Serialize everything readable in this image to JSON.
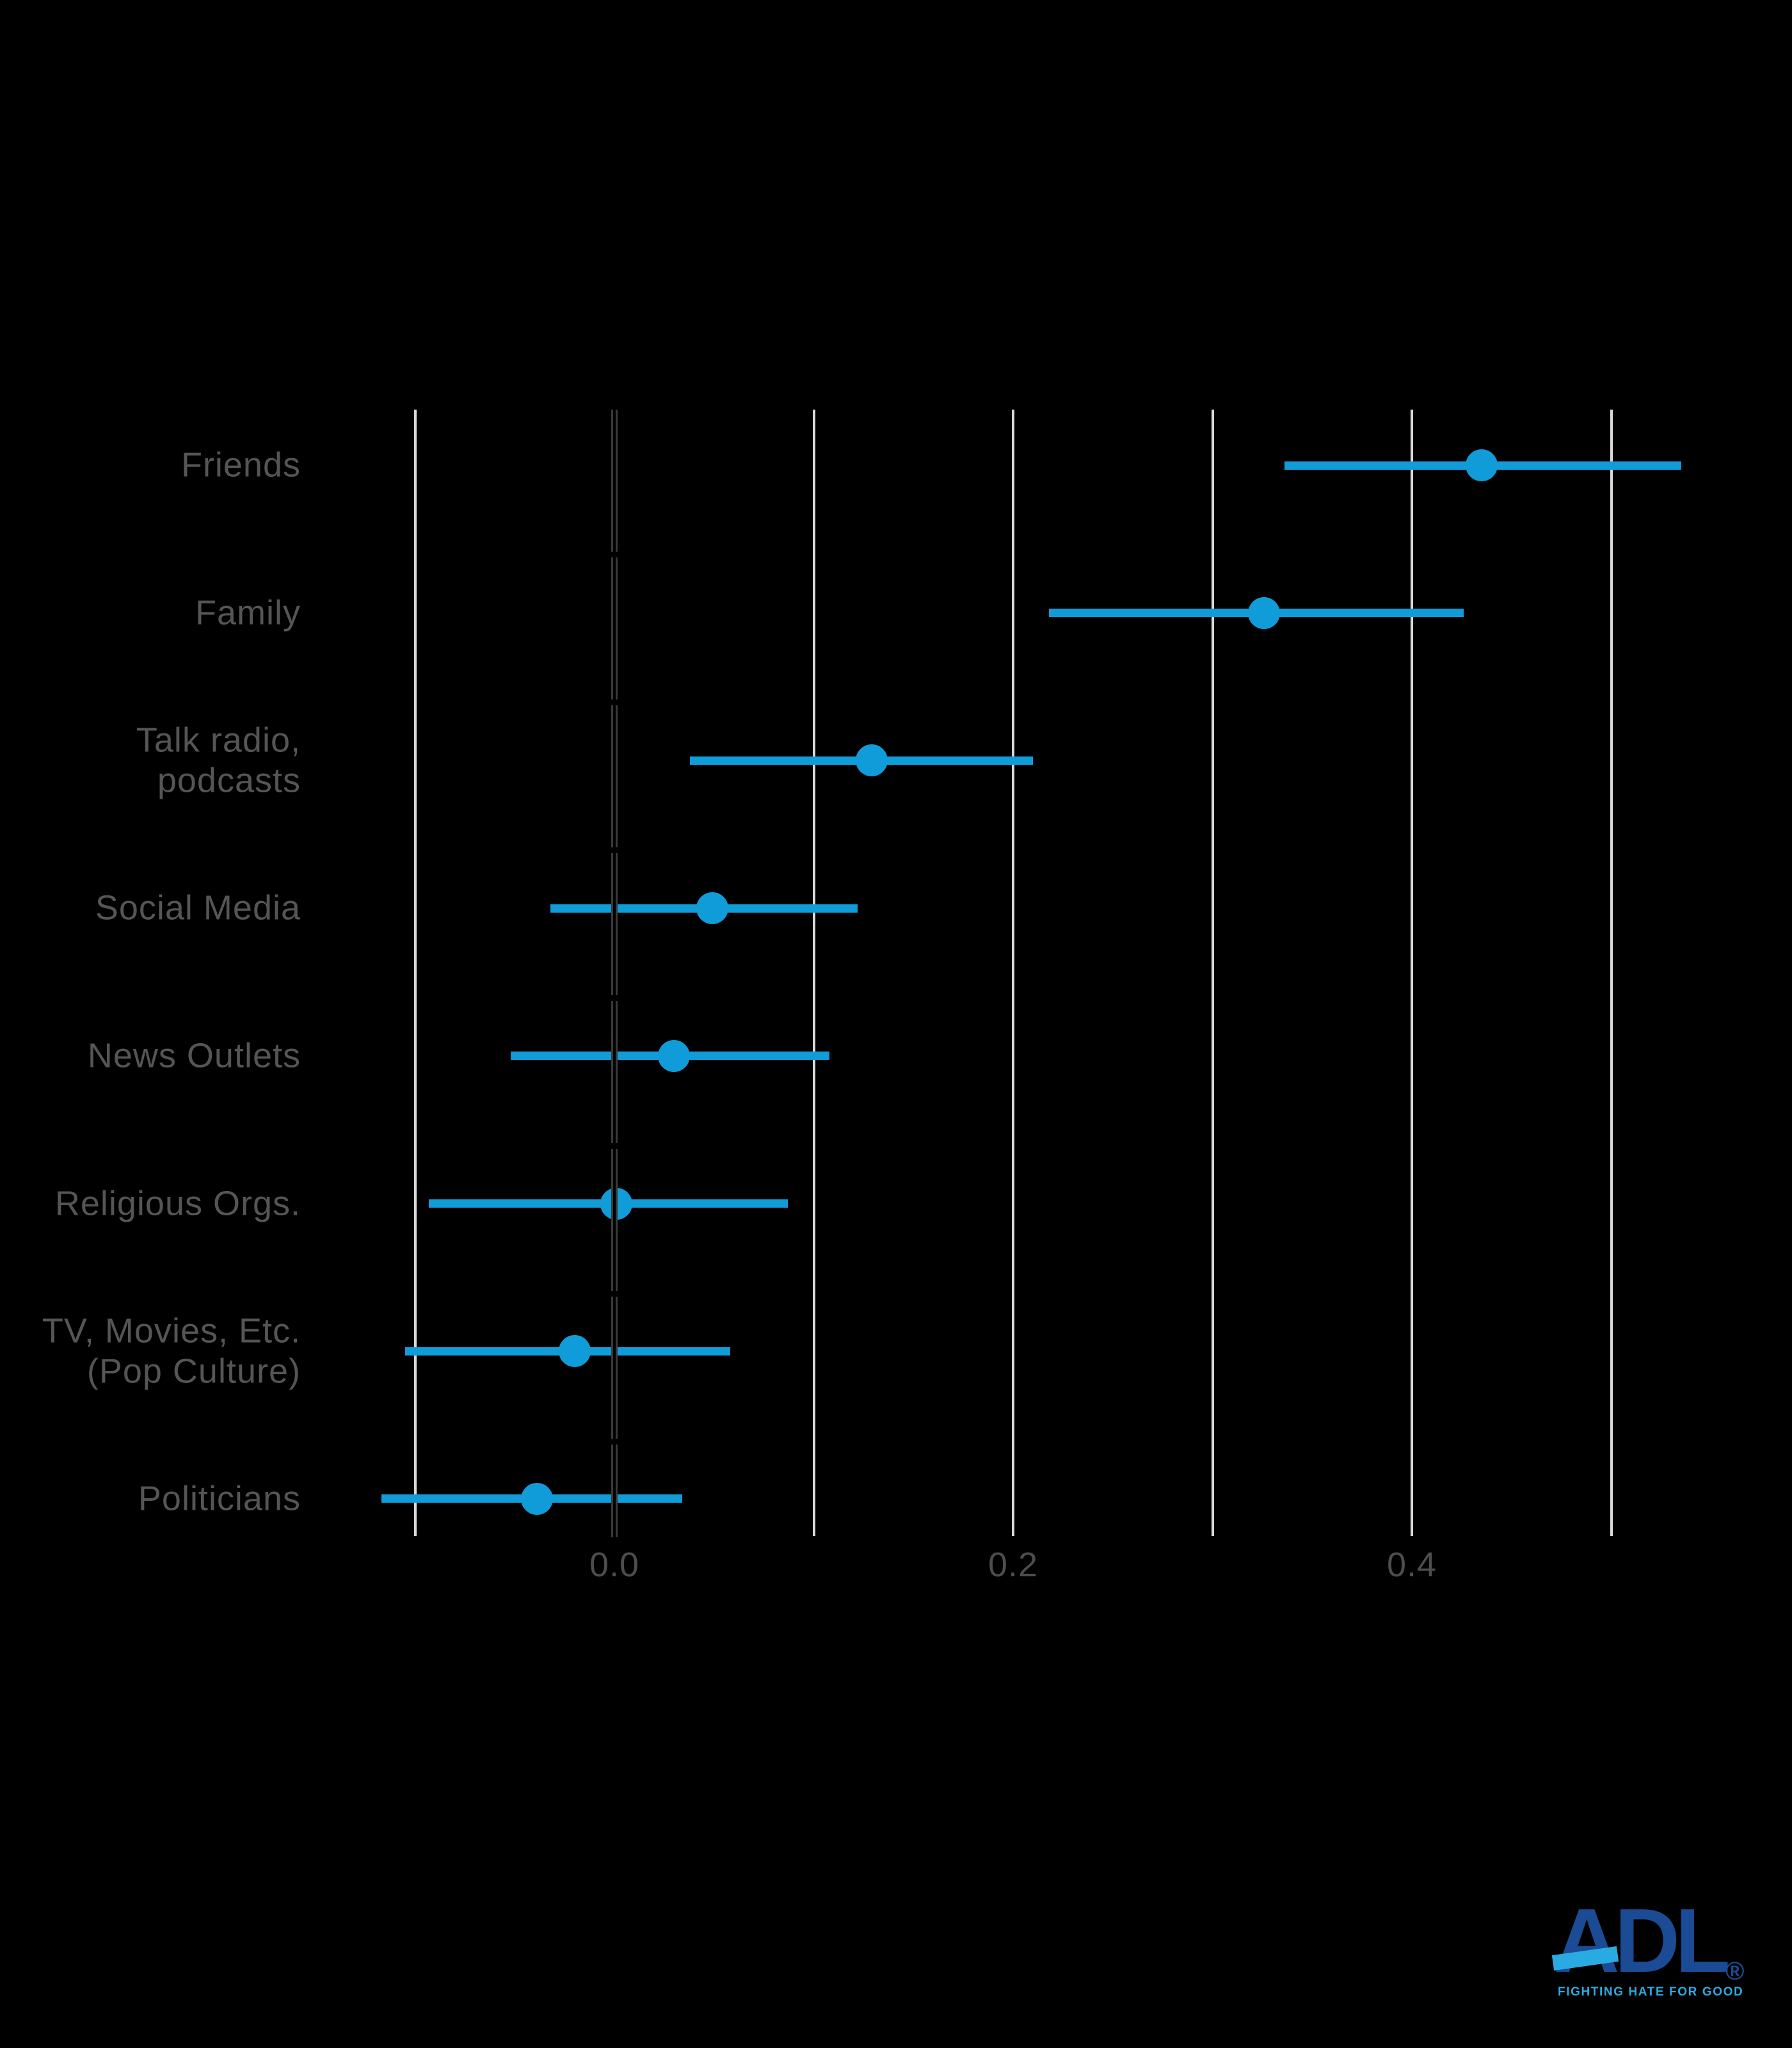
{
  "page": {
    "background": "#000000"
  },
  "chart_data": {
    "type": "scatter",
    "subtype": "horizontal-dot-plot-with-error-bars",
    "title": "",
    "xlabel": "",
    "ylabel": "",
    "categories": [
      "Friends",
      "Family",
      "Talk radio,\npodcasts",
      "Social Media",
      "News Outlets",
      "Religious Orgs.",
      "TV, Movies, Etc.\n(Pop Culture)",
      "Politicians"
    ],
    "points": [
      {
        "label": "Friends",
        "value": 0.435,
        "ci_low": 0.336,
        "ci_high": 0.535
      },
      {
        "label": "Family",
        "value": 0.326,
        "ci_low": 0.218,
        "ci_high": 0.426
      },
      {
        "label": "Talk radio,\npodcasts",
        "value": 0.129,
        "ci_low": 0.038,
        "ci_high": 0.21
      },
      {
        "label": "Social Media",
        "value": 0.049,
        "ci_low": -0.032,
        "ci_high": 0.122
      },
      {
        "label": "News Outlets",
        "value": 0.03,
        "ci_low": -0.052,
        "ci_high": 0.108
      },
      {
        "label": "Religious Orgs.",
        "value": 0.001,
        "ci_low": -0.093,
        "ci_high": 0.087
      },
      {
        "label": "TV, Movies, Etc.\n(Pop Culture)",
        "value": -0.02,
        "ci_low": -0.105,
        "ci_high": 0.058
      },
      {
        "label": "Politicians",
        "value": -0.039,
        "ci_low": -0.117,
        "ci_high": 0.034
      }
    ],
    "xlim": [
      -0.117,
      0.55
    ],
    "xticks": [
      {
        "value": 0,
        "label": "0.0"
      },
      {
        "value": 0.2,
        "label": "0.2"
      },
      {
        "value": 0.4,
        "label": "0.4"
      }
    ],
    "gridline_values": [
      -0.1,
      0.1,
      0.2,
      0.3,
      0.4,
      0.5
    ],
    "zero_line_value": 0,
    "grid": "vertical-only",
    "legend_position": "none",
    "colors": {
      "marker": "#109CD9",
      "gridline": "#D9D9D9",
      "zero_line_edge": "#3A3A3A",
      "zero_line_core": "#000000",
      "category_label": "#555555",
      "tick_label": "#4D4D4D",
      "background": "#000000"
    }
  },
  "logo": {
    "wordmark": "ADL",
    "registered": "®",
    "tagline": "FIGHTING HATE FOR GOOD",
    "navy": "#1A4B94",
    "cyan": "#29ABE2"
  }
}
